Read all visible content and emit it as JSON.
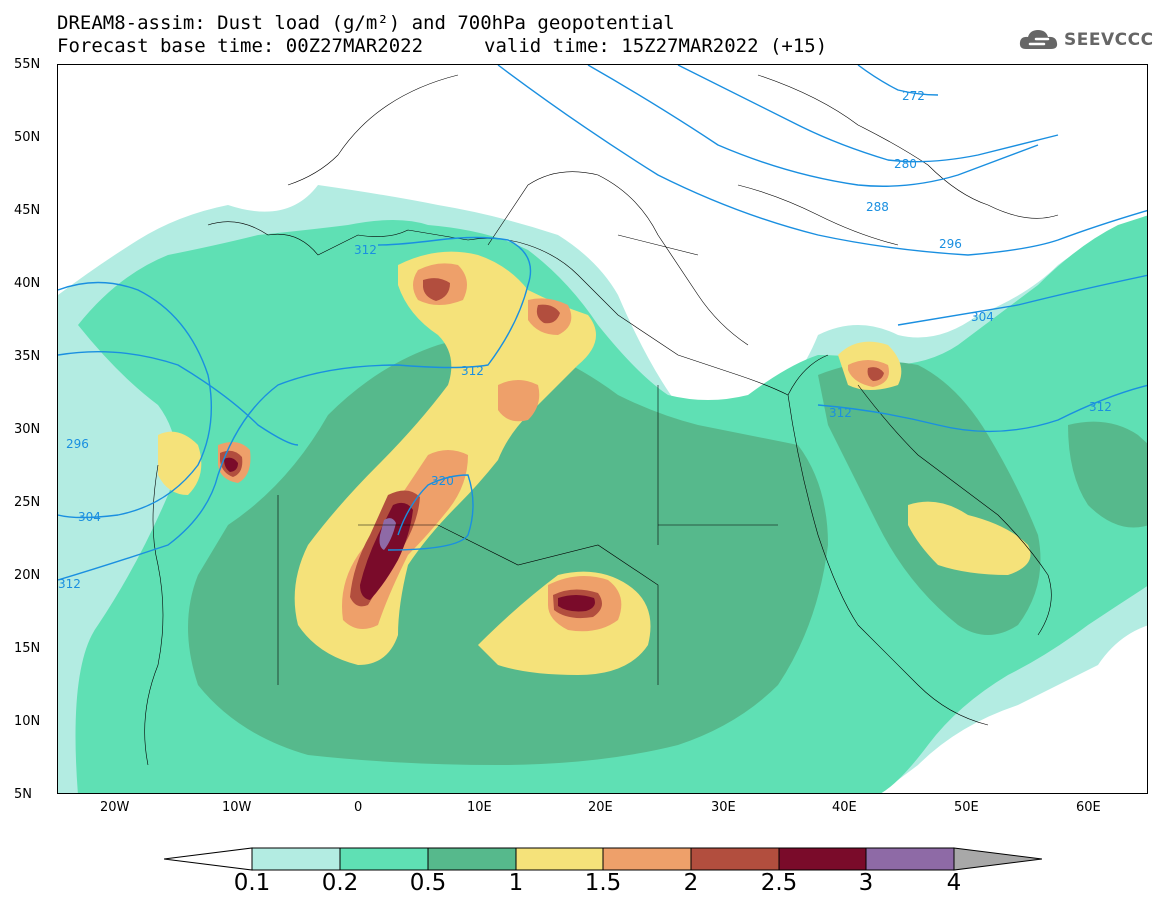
{
  "title": {
    "line1": "DREAM8-assim: Dust load (g/m²) and 700hPa geopotential",
    "line2": "Forecast base time: 00Z27MAR2022",
    "valid": "valid time: 15Z27MAR2022 (+15)"
  },
  "logo": {
    "text": "SEEVCCC",
    "icon": "cloud-icon"
  },
  "axes": {
    "lat_labels": [
      "55N",
      "50N",
      "45N",
      "40N",
      "35N",
      "30N",
      "25N",
      "20N",
      "15N",
      "10N",
      "5N"
    ],
    "lon_labels": [
      "20W",
      "10W",
      "0",
      "10E",
      "20E",
      "30E",
      "40E",
      "50E",
      "60E"
    ]
  },
  "legend": {
    "thresholds": [
      "0.1",
      "0.2",
      "0.5",
      "1",
      "1.5",
      "2",
      "2.5",
      "3",
      "4"
    ],
    "colors": [
      "#b3ece2",
      "#5fe0b4",
      "#56b98c",
      "#f5e27a",
      "#eea06a",
      "#b24e3e",
      "#7a0b2a",
      "#8e6aa6"
    ],
    "tail_color": "#a8a8a8"
  },
  "contours": {
    "color": "#1a8fe0",
    "labels": [
      "272",
      "280",
      "288",
      "296",
      "304",
      "312",
      "312",
      "312",
      "312",
      "320",
      "296",
      "304",
      "312"
    ]
  }
}
